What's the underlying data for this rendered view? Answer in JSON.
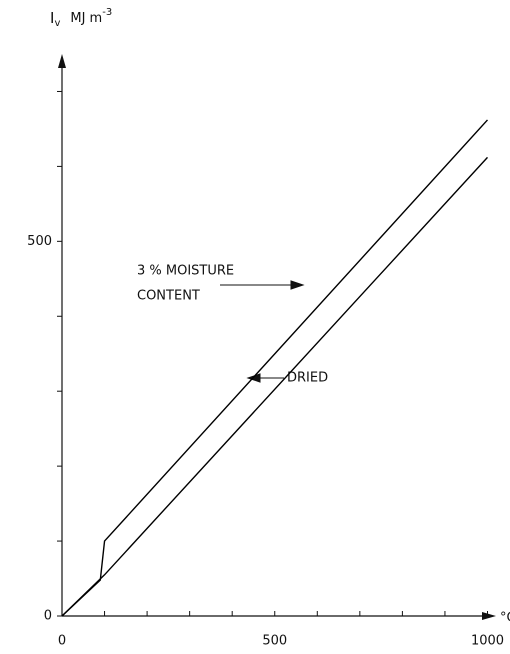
{
  "chart_data": {
    "type": "line",
    "ylabel": "I",
    "ylabel_sub": "v",
    "yunit": "MJ m",
    "yunit_sup": "-3",
    "xlabel": "°C",
    "xlim": [
      0,
      1020
    ],
    "xticks": [
      0,
      500,
      1000
    ],
    "xminorticks": [
      100,
      200,
      300,
      400,
      600,
      700,
      800,
      900
    ],
    "ylim": [
      0,
      750
    ],
    "yticks": [
      0,
      500
    ],
    "yminorticks": [
      100,
      200,
      300,
      400,
      600,
      700
    ],
    "series": [
      {
        "name": "3 % MOISTURE CONTENT",
        "color": "#000000",
        "x": [
          0,
          90,
          100,
          1000
        ],
        "values": [
          0,
          48,
          100,
          662
        ]
      },
      {
        "name": "DRIED",
        "color": "#000000",
        "x": [
          0,
          100,
          1000
        ],
        "values": [
          0,
          55,
          612
        ]
      }
    ],
    "annotations": [
      "3 % MOISTURE",
      "CONTENT",
      "DRIED"
    ]
  }
}
